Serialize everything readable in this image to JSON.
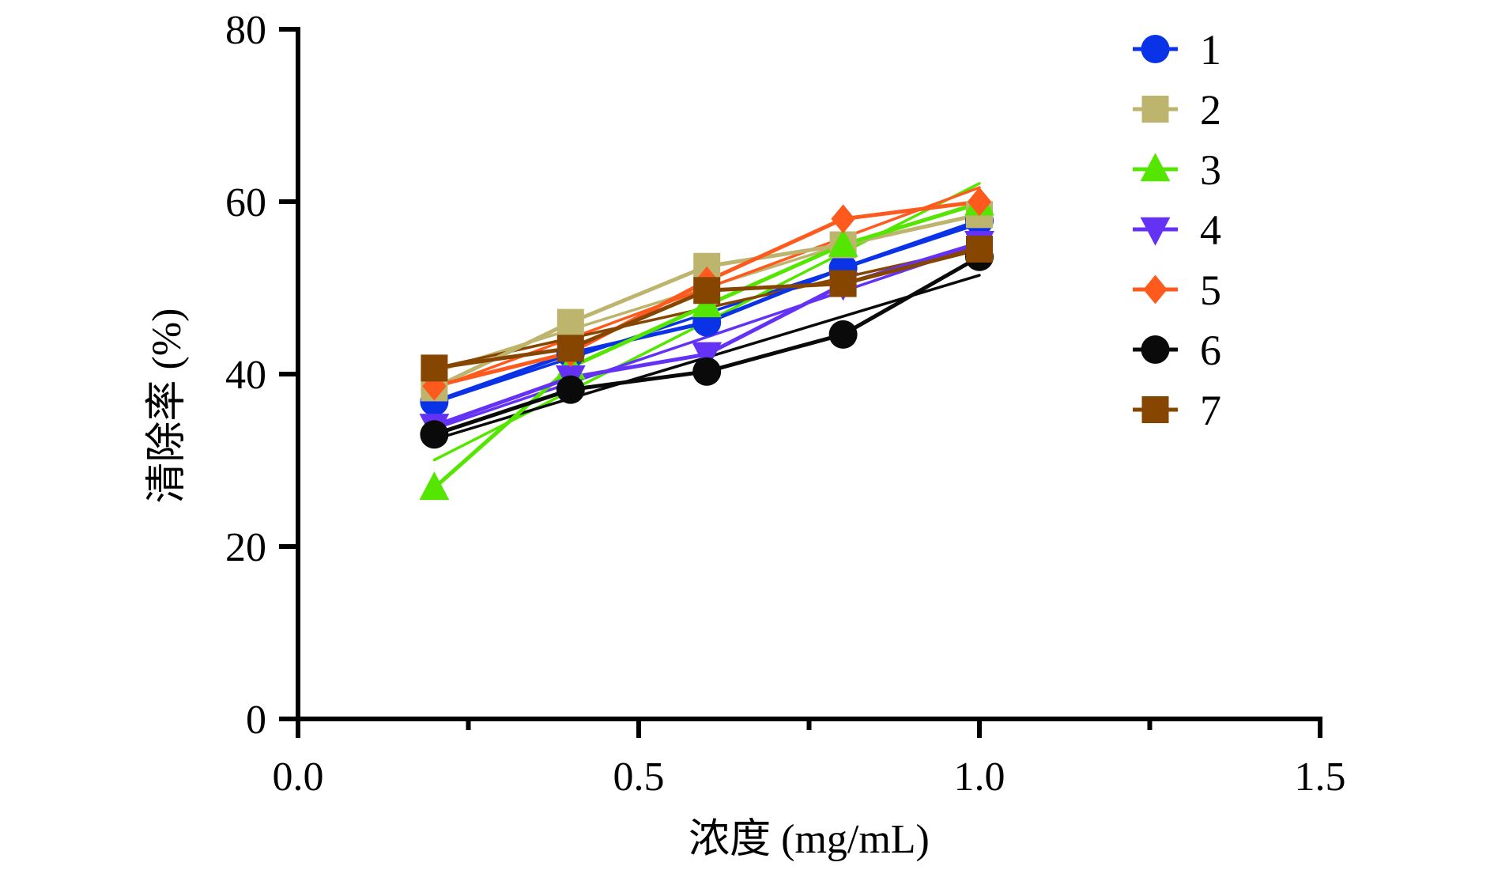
{
  "chart_data": {
    "type": "line",
    "title": "",
    "xlabel": "浓度 (mg/mL)",
    "ylabel": "清除率 (%)",
    "xlim": [
      0.0,
      1.5
    ],
    "ylim": [
      0,
      80
    ],
    "xticks": [
      {
        "value": 0.0,
        "label": "0.0"
      },
      {
        "value": 0.5,
        "label": "0.5"
      },
      {
        "value": 1.0,
        "label": "1.0"
      },
      {
        "value": 1.5,
        "label": "1.5"
      }
    ],
    "xminor_ticks": [
      0.25,
      0.75,
      1.25
    ],
    "yticks": [
      {
        "value": 0,
        "label": "0"
      },
      {
        "value": 20,
        "label": "20"
      },
      {
        "value": 40,
        "label": "40"
      },
      {
        "value": 60,
        "label": "60"
      },
      {
        "value": 80,
        "label": "80"
      }
    ],
    "grid": false,
    "legend_position": "top-right",
    "trendlines": "linear",
    "x": [
      0.2,
      0.4,
      0.6,
      0.8,
      1.0
    ],
    "series": [
      {
        "name": "1",
        "marker": "circle",
        "color": "#0a32e6",
        "values": [
          36.8,
          42.4,
          46.0,
          52.3,
          57.8
        ]
      },
      {
        "name": "2",
        "marker": "square",
        "color": "#bdb46e",
        "values": [
          38.4,
          46.0,
          52.5,
          55.0,
          58.5
        ]
      },
      {
        "name": "3",
        "marker": "triangle-up",
        "color": "#55e600",
        "values": [
          26.8,
          40.8,
          48.0,
          55.0,
          59.8
        ]
      },
      {
        "name": "4",
        "marker": "triangle-down",
        "color": "#6432f5",
        "values": [
          34.0,
          39.6,
          42.3,
          50.4,
          55.2
        ]
      },
      {
        "name": "5",
        "marker": "diamond",
        "color": "#ff5a1e",
        "values": [
          38.6,
          42.5,
          50.8,
          58.0,
          60.0
        ]
      },
      {
        "name": "6",
        "marker": "circle",
        "color": "#0a0a0a",
        "values": [
          33.0,
          38.2,
          40.3,
          44.6,
          53.6
        ]
      },
      {
        "name": "7",
        "marker": "square",
        "color": "#874600",
        "values": [
          40.7,
          43.0,
          49.7,
          50.5,
          54.5
        ]
      }
    ]
  }
}
